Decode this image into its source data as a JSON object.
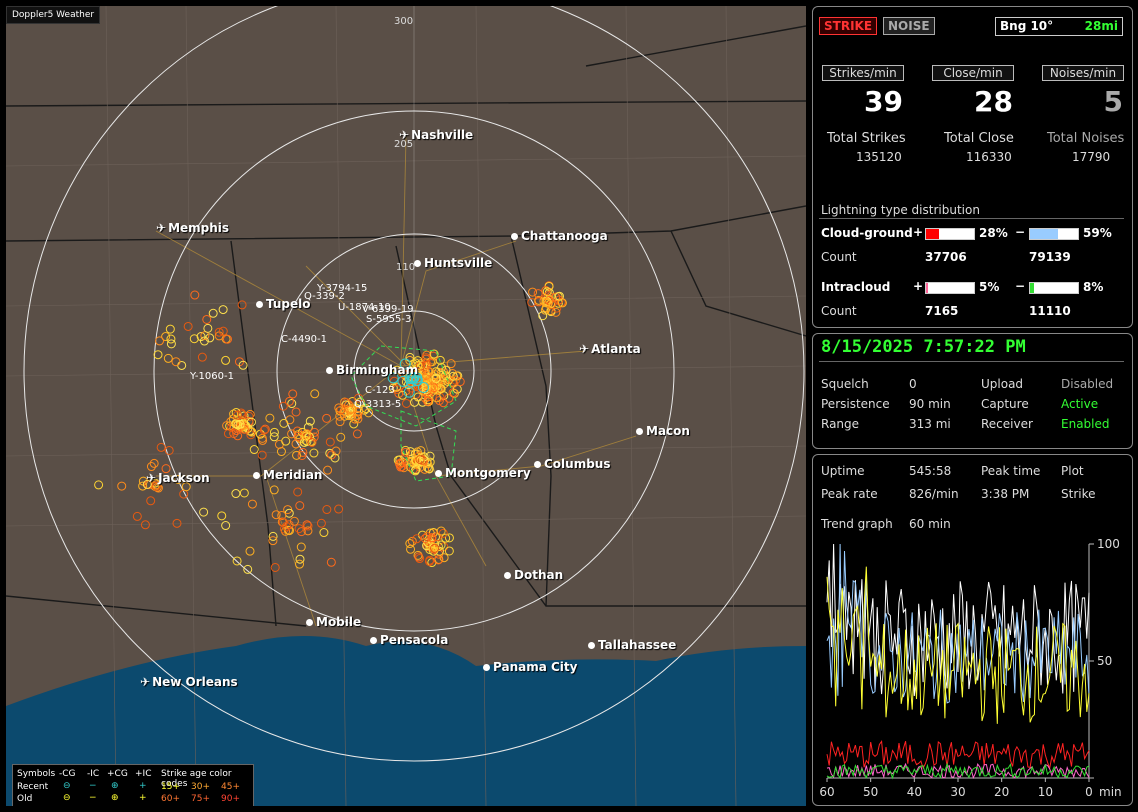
{
  "app_title": "Doppler5 Weather",
  "map": {
    "range_rings": [
      "300",
      "205",
      "110"
    ],
    "cities": [
      {
        "name": "Nashville",
        "type": "airport"
      },
      {
        "name": "Memphis",
        "type": "airport"
      },
      {
        "name": "Chattanooga",
        "type": "city"
      },
      {
        "name": "Huntsville",
        "type": "city"
      },
      {
        "name": "Tupelo",
        "type": "city"
      },
      {
        "name": "Atlanta",
        "type": "airport"
      },
      {
        "name": "Birmingham",
        "type": "city"
      },
      {
        "name": "Macon",
        "type": "city"
      },
      {
        "name": "Jackson",
        "type": "airport"
      },
      {
        "name": "Meridian",
        "type": "city"
      },
      {
        "name": "Montgomery",
        "type": "city"
      },
      {
        "name": "Columbus",
        "type": "city"
      },
      {
        "name": "Dothan",
        "type": "city"
      },
      {
        "name": "Mobile",
        "type": "city"
      },
      {
        "name": "Pensacola",
        "type": "city"
      },
      {
        "name": "Tallahassee",
        "type": "city"
      },
      {
        "name": "Panama City",
        "type": "city"
      },
      {
        "name": "New Orleans",
        "type": "airport"
      }
    ],
    "storm_ids": [
      "Y-3794-15",
      "Q-339-2",
      "U-1874-10",
      "V-6399-19",
      "S-5955-3",
      "C-4490-1",
      "Y-1060-1",
      "C-123",
      "Q-3313-5"
    ]
  },
  "legend": {
    "symbols_label": "Symbols",
    "cols": [
      "-CG",
      "-IC",
      "+CG",
      "+IC"
    ],
    "age_label": "Strike age color codes",
    "recent_label": "Recent",
    "old_label": "Old",
    "recent_ages": [
      "15+",
      "30+",
      "45+"
    ],
    "old_ages": [
      "60+",
      "75+",
      "90+"
    ]
  },
  "status": {
    "strike_tag": "STRIKE",
    "noise_tag": "NOISE",
    "bearing": "Bng 10°",
    "distance": "28mi",
    "rates": [
      {
        "label": "Strikes/min",
        "value": "39",
        "total_label": "Total Strikes",
        "total": "135120"
      },
      {
        "label": "Close/min",
        "value": "28",
        "total_label": "Total Close",
        "total": "116330"
      },
      {
        "label": "Noises/min",
        "value": "5",
        "total_label": "Total Noises",
        "total": "17790"
      }
    ],
    "dist_title": "Lightning type distribution",
    "cg_label": "Cloud-ground",
    "cg_pos_pct": "28%",
    "cg_neg_pct": "59%",
    "cg_pos_count": "37706",
    "cg_neg_count": "79139",
    "ic_label": "Intracloud",
    "ic_pos_pct": "5%",
    "ic_neg_pct": "8%",
    "ic_pos_count": "7165",
    "ic_neg_count": "11110",
    "count_label": "Count",
    "plus": "+",
    "minus": "−",
    "bars": {
      "cg_pos": 0.28,
      "cg_neg": 0.59,
      "ic_pos": 0.05,
      "ic_neg": 0.08
    }
  },
  "settings": {
    "datetime": "8/15/2025 7:57:22 PM",
    "squelch_label": "Squelch",
    "squelch": "0",
    "persistence_label": "Persistence",
    "persistence": "90 min",
    "range_label": "Range",
    "range": "313 mi",
    "upload_label": "Upload",
    "upload": "Disabled",
    "capture_label": "Capture",
    "capture": "Active",
    "receiver_label": "Receiver",
    "receiver": "Enabled"
  },
  "trend": {
    "uptime_label": "Uptime",
    "uptime": "545:58",
    "peak_time_label": "Peak time",
    "peak_time": "3:38 PM",
    "plot_label": "Plot",
    "plot": "Strike",
    "peak_rate_label": "Peak rate",
    "peak_rate": "826/min",
    "graph_label": "Trend graph",
    "graph_span": "60 min",
    "y_ticks": [
      "100",
      "50",
      "0"
    ],
    "x_ticks": [
      "60",
      "50",
      "40",
      "30",
      "20",
      "10",
      "0"
    ],
    "x_unit": "min"
  },
  "colors": {
    "green": "#33ff33",
    "strike": "#ff3333",
    "cg_pos": "#ff0000",
    "cg_neg": "#99ccff",
    "ic_pos": "#ff6699",
    "ic_neg": "#33dd33"
  }
}
